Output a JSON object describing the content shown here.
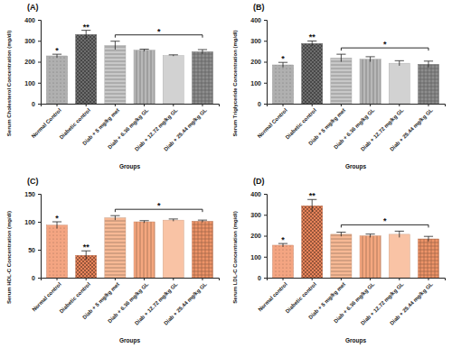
{
  "chart_data": [
    {
      "type": "bar",
      "title": "(A)",
      "ylabel": "Serum Cholesterol Concentration (mg/dl)",
      "xlabel": "Groups",
      "categories": [
        "Normal Control",
        "Diabetic control",
        "Diab + 5 mg/kg met",
        "Diab + 6.36 mg/kg GL",
        "Diab + 12.72 mg/kg GL",
        "Diab + 25.44 mg/kg GL"
      ],
      "values": [
        228,
        330,
        278,
        255,
        230,
        248
      ],
      "errors": [
        8,
        20,
        20,
        5,
        3,
        10
      ],
      "colors": [
        "#b0b0b0",
        "#6e6e6e",
        "#c8c8c8",
        "#b8b8b8",
        "#d2d2d2",
        "#8e8e8e"
      ],
      "ylim": [
        0,
        400
      ],
      "yticks": [
        0,
        100,
        200,
        300,
        400
      ],
      "annotations": [
        {
          "text": "*",
          "span": [
            0,
            0
          ]
        },
        {
          "text": "**",
          "span": [
            1,
            1
          ]
        },
        {
          "text": "*",
          "span": [
            2,
            5
          ]
        }
      ]
    },
    {
      "type": "bar",
      "title": "(B)",
      "ylabel": "Serum Triglyceride Concentration (mg/dl)",
      "xlabel": "Groups",
      "categories": [
        "Normal Control",
        "Diabetic control",
        "Diab + 5 mg/kg met",
        "Diab + 6.36 mg/kg GL",
        "Diab + 12.72 mg/kg GL",
        "Diab + 25.44 mg/kg GL"
      ],
      "values": [
        185,
        287,
        218,
        212,
        193,
        188
      ],
      "errors": [
        12,
        12,
        18,
        12,
        12,
        15
      ],
      "colors": [
        "#b0b0b0",
        "#6e6e6e",
        "#c8c8c8",
        "#b8b8b8",
        "#d2d2d2",
        "#8e8e8e"
      ],
      "ylim": [
        0,
        400
      ],
      "yticks": [
        0,
        100,
        200,
        300,
        400
      ],
      "annotations": [
        {
          "text": "*",
          "span": [
            0,
            0
          ]
        },
        {
          "text": "**",
          "span": [
            1,
            1
          ]
        },
        {
          "text": "*",
          "span": [
            2,
            5
          ]
        }
      ]
    },
    {
      "type": "bar",
      "title": "(C)",
      "ylabel": "Serum HDL-C Concentration (mg/dl)",
      "xlabel": "Groups",
      "categories": [
        "Normal control",
        "Diabetic control",
        "Diab + 5 mg/kg met",
        "Diab + 6.36 mg/kg GL",
        "Diab + 12.72 mg/kg GL",
        "Diab + 25.44 mg/kg GL"
      ],
      "values": [
        94,
        40,
        107,
        100,
        103,
        101
      ],
      "errors": [
        6,
        8,
        4,
        2,
        2,
        2
      ],
      "colors": [
        "#f4a582",
        "#e8845a",
        "#f7b995",
        "#f5a77f",
        "#f9c3a5",
        "#ee9468"
      ],
      "ylim": [
        0,
        150
      ],
      "yticks": [
        0,
        50,
        100,
        150
      ],
      "annotations": [
        {
          "text": "*",
          "span": [
            0,
            0
          ]
        },
        {
          "text": "**",
          "span": [
            1,
            1
          ]
        },
        {
          "text": "*",
          "span": [
            2,
            5
          ]
        }
      ]
    },
    {
      "type": "bar",
      "title": "(D)",
      "ylabel": "Serum LDL-C Concentration (mg/dl)",
      "xlabel": "Groups",
      "categories": [
        "Normal control",
        "Diabetic control",
        "Diab + 5 mg/kg met",
        "Diab + 6.36 mg/kg GL",
        "Diab + 12.72 mg/kg GL",
        "Diab + 25.44 mg/kg GL"
      ],
      "values": [
        155,
        343,
        207,
        200,
        207,
        185
      ],
      "errors": [
        8,
        30,
        10,
        8,
        15,
        12
      ],
      "colors": [
        "#f4a582",
        "#e8845a",
        "#f7b995",
        "#f5a77f",
        "#f9c3a5",
        "#ee9468"
      ],
      "ylim": [
        0,
        400
      ],
      "yticks": [
        0,
        100,
        200,
        300,
        400
      ],
      "annotations": [
        {
          "text": "*",
          "span": [
            0,
            0
          ]
        },
        {
          "text": "**",
          "span": [
            1,
            1
          ]
        },
        {
          "text": "*",
          "span": [
            2,
            5
          ]
        }
      ]
    }
  ]
}
